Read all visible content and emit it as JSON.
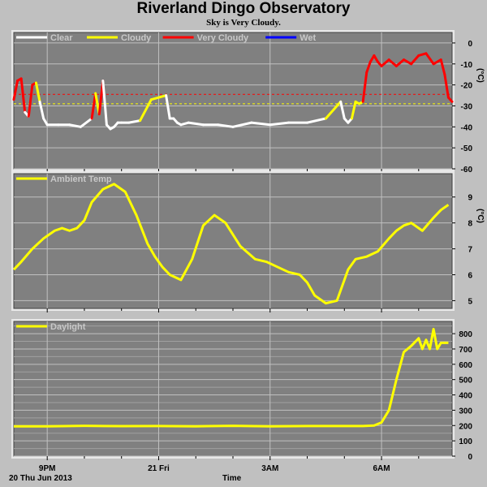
{
  "header": {
    "title": "Riverland Dingo Observatory",
    "subtitle": "Sky is Very Cloudy."
  },
  "footer": {
    "date_label": "20 Thu Jun 2013",
    "x_axis_label": "Time"
  },
  "colors": {
    "background": "#c0c0c0",
    "plot_bg": "#808080",
    "grid": "#c0c0c0",
    "clear": "#ffffff",
    "cloudy": "#ffff00",
    "very_cloudy": "#ff0000",
    "wet": "#0000ff"
  },
  "chart_data": [
    {
      "type": "line",
      "name": "sky-temperature",
      "ylabel": "(°C)",
      "ylim": [
        -60,
        5
      ],
      "yticks": [
        0,
        -10,
        -20,
        -30,
        -40,
        -50,
        -60
      ],
      "grid": true,
      "legend_position": "top-left",
      "legend": [
        {
          "label": "Clear",
          "color": "#ffffff"
        },
        {
          "label": "Cloudy",
          "color": "#ffff00"
        },
        {
          "label": "Very Cloudy",
          "color": "#ff0000"
        },
        {
          "label": "Wet",
          "color": "#0000ff"
        }
      ],
      "thresholds": [
        {
          "value": -24.5,
          "color": "#ff0000",
          "style": "dashed"
        },
        {
          "value": -29,
          "color": "#ffff00",
          "style": "dashed"
        }
      ],
      "xlim": [
        -0.9,
        10.9
      ],
      "x": [
        -0.9,
        -0.8,
        -0.7,
        -0.6,
        -0.5,
        -0.4,
        -0.3,
        -0.2,
        -0.1,
        0.0,
        0.3,
        0.6,
        0.9,
        1.2,
        1.3,
        1.4,
        1.5,
        1.6,
        1.7,
        1.8,
        1.9,
        2.0,
        2.2,
        2.5,
        2.8,
        3.2,
        3.3,
        3.4,
        3.5,
        3.6,
        3.8,
        4.2,
        4.6,
        5.0,
        5.5,
        6.0,
        6.5,
        7.0,
        7.5,
        7.9,
        8.0,
        8.1,
        8.2,
        8.3,
        8.4,
        8.5,
        8.6,
        8.7,
        8.8,
        8.9,
        9.0,
        9.2,
        9.4,
        9.6,
        9.8,
        10.0,
        10.2,
        10.4,
        10.6,
        10.7,
        10.8,
        10.9
      ],
      "y": [
        -27,
        -18,
        -17,
        -33,
        -35,
        -20,
        -19,
        -28,
        -36,
        -39,
        -39,
        -39,
        -40,
        -36,
        -24,
        -34,
        -18,
        -39,
        -41,
        -40,
        -38,
        -38,
        -38,
        -37,
        -27,
        -25,
        -36,
        -36,
        -38,
        -39,
        -38,
        -39,
        -39,
        -40,
        -38,
        -39,
        -38,
        -38,
        -36,
        -28,
        -36,
        -38,
        -36,
        -28,
        -29,
        -28,
        -14,
        -9,
        -6,
        -9,
        -11,
        -8,
        -11,
        -8,
        -10,
        -6,
        -5,
        -10,
        -8,
        -15,
        -26,
        -28
      ],
      "state": [
        "cloudy",
        "very_cloudy",
        "very_cloudy",
        "very_cloudy",
        "clear",
        "very_cloudy",
        "very_cloudy",
        "cloudy",
        "clear",
        "clear",
        "clear",
        "clear",
        "clear",
        "clear",
        "very_cloudy",
        "cloudy",
        "very_cloudy",
        "clear",
        "clear",
        "clear",
        "clear",
        "clear",
        "clear",
        "clear",
        "cloudy",
        "cloudy",
        "clear",
        "clear",
        "clear",
        "clear",
        "clear",
        "clear",
        "clear",
        "clear",
        "clear",
        "clear",
        "clear",
        "clear",
        "clear",
        "cloudy",
        "clear",
        "clear",
        "clear",
        "cloudy",
        "cloudy",
        "cloudy",
        "very_cloudy",
        "very_cloudy",
        "very_cloudy",
        "very_cloudy",
        "very_cloudy",
        "very_cloudy",
        "very_cloudy",
        "very_cloudy",
        "very_cloudy",
        "very_cloudy",
        "very_cloudy",
        "very_cloudy",
        "very_cloudy",
        "very_cloudy",
        "very_cloudy",
        "very_cloudy"
      ]
    },
    {
      "type": "line",
      "name": "ambient-temp",
      "ylabel": "(°C)",
      "ylim": [
        4.7,
        9.9
      ],
      "yticks": [
        5,
        6,
        7,
        8,
        9
      ],
      "grid": true,
      "legend_position": "top-left",
      "legend": [
        {
          "label": "Ambient Temp",
          "color": "#ffff00"
        }
      ],
      "xlim": [
        -0.9,
        10.9
      ],
      "x": [
        -0.9,
        -0.7,
        -0.4,
        -0.1,
        0.2,
        0.4,
        0.6,
        0.8,
        1.0,
        1.2,
        1.5,
        1.8,
        2.1,
        2.4,
        2.7,
        2.9,
        3.1,
        3.3,
        3.6,
        3.9,
        4.2,
        4.5,
        4.8,
        5.2,
        5.6,
        5.9,
        6.2,
        6.5,
        6.8,
        7.0,
        7.2,
        7.5,
        7.8,
        8.1,
        8.3,
        8.6,
        8.9,
        9.2,
        9.4,
        9.6,
        9.8,
        10.1,
        10.4,
        10.6,
        10.8
      ],
      "y": [
        6.2,
        6.5,
        7.0,
        7.4,
        7.7,
        7.8,
        7.7,
        7.8,
        8.1,
        8.8,
        9.3,
        9.5,
        9.2,
        8.3,
        7.2,
        6.7,
        6.3,
        6.0,
        5.8,
        6.6,
        7.9,
        8.3,
        8.0,
        7.1,
        6.6,
        6.5,
        6.3,
        6.1,
        6.0,
        5.7,
        5.2,
        4.9,
        5.0,
        6.2,
        6.6,
        6.7,
        6.9,
        7.4,
        7.7,
        7.9,
        8.0,
        7.7,
        8.2,
        8.5,
        8.7
      ]
    },
    {
      "type": "line",
      "name": "daylight",
      "ylabel": "",
      "ylim": [
        0,
        880
      ],
      "yticks": [
        0,
        100,
        200,
        300,
        400,
        500,
        600,
        700,
        800
      ],
      "grid": true,
      "legend_position": "top-left",
      "legend": [
        {
          "label": "Daylight",
          "color": "#ffff00"
        }
      ],
      "xlim": [
        -0.9,
        10.9
      ],
      "x": [
        -0.9,
        0.0,
        1.0,
        2.0,
        3.0,
        4.0,
        5.0,
        6.0,
        7.0,
        8.0,
        8.5,
        8.8,
        9.0,
        9.2,
        9.4,
        9.6,
        9.8,
        10.0,
        10.1,
        10.2,
        10.3,
        10.4,
        10.5,
        10.6,
        10.8
      ],
      "y": [
        195,
        195,
        198,
        196,
        197,
        195,
        198,
        195,
        197,
        197,
        197,
        200,
        220,
        300,
        500,
        680,
        720,
        770,
        700,
        760,
        700,
        830,
        700,
        740,
        740
      ]
    }
  ],
  "x_axis": {
    "ticks": [
      {
        "pos": 0,
        "label": "9PM"
      },
      {
        "pos": 3,
        "label": "21 Fri"
      },
      {
        "pos": 6,
        "label": "3AM"
      },
      {
        "pos": 9,
        "label": "6AM"
      }
    ],
    "minor_ticks": [
      1,
      2,
      4,
      5,
      7,
      8,
      10
    ]
  }
}
